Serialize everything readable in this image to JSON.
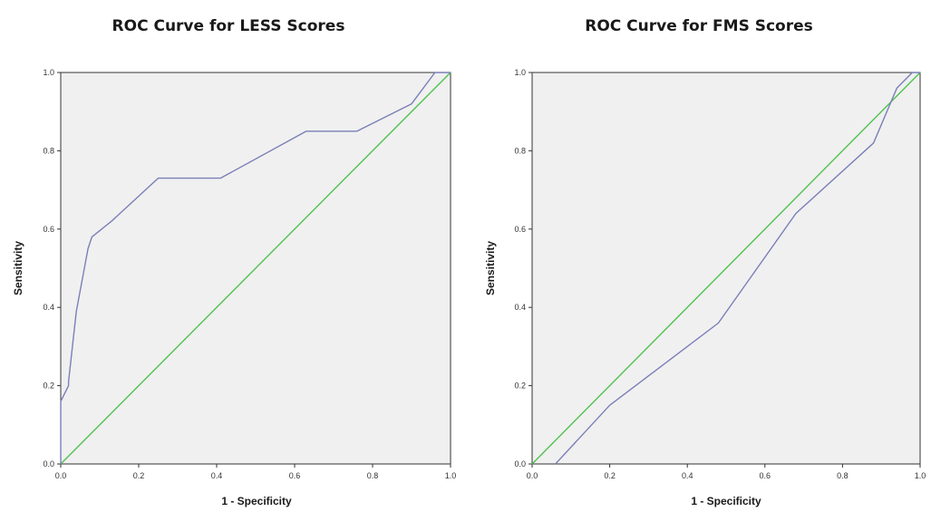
{
  "chart_data": [
    {
      "type": "line",
      "title": "ROC Curve for LESS Scores",
      "xlabel": "1 - Specificity",
      "ylabel": "Sensitivity",
      "xlim": [
        0,
        1
      ],
      "ylim": [
        0,
        1
      ],
      "x_ticks": [
        "0.0",
        "0.2",
        "0.4",
        "0.6",
        "0.8",
        "1.0"
      ],
      "y_ticks": [
        "0.0",
        "0.2",
        "0.4",
        "0.6",
        "0.8",
        "1.0"
      ],
      "grid": false,
      "legend": "none",
      "series": [
        {
          "color": "#7b7fb8",
          "x": [
            0.0,
            0.0,
            0.02,
            0.02,
            0.04,
            0.07,
            0.08,
            0.13,
            0.25,
            0.41,
            0.63,
            0.76,
            0.9,
            0.96,
            1.0
          ],
          "y": [
            0.0,
            0.16,
            0.2,
            0.21,
            0.39,
            0.55,
            0.58,
            0.62,
            0.73,
            0.73,
            0.85,
            0.85,
            0.92,
            1.0,
            1.0
          ]
        },
        {
          "color": "#4fc24f",
          "x": [
            0,
            1
          ],
          "y": [
            0,
            1
          ]
        }
      ]
    },
    {
      "type": "line",
      "title": "ROC Curve for FMS Scores",
      "xlabel": "1 - Specificity",
      "ylabel": "Sensitivity",
      "xlim": [
        0,
        1
      ],
      "ylim": [
        0,
        1
      ],
      "x_ticks": [
        "0.0",
        "0.2",
        "0.4",
        "0.6",
        "0.8",
        "1.0"
      ],
      "y_ticks": [
        "0.0",
        "0.2",
        "0.4",
        "0.6",
        "0.8",
        "1.0"
      ],
      "grid": false,
      "legend": "none",
      "series": [
        {
          "color": "#7b7fb8",
          "x": [
            0.06,
            0.2,
            0.48,
            0.68,
            0.88,
            0.94,
            0.98,
            1.0
          ],
          "y": [
            0.0,
            0.15,
            0.36,
            0.64,
            0.82,
            0.96,
            1.0,
            1.0
          ]
        },
        {
          "color": "#4fc24f",
          "x": [
            0,
            1
          ],
          "y": [
            0,
            1
          ]
        }
      ]
    }
  ]
}
